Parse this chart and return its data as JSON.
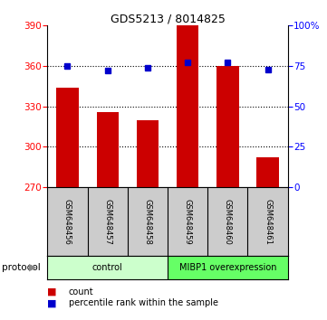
{
  "title": "GDS5213 / 8014825",
  "samples": [
    "GSM648456",
    "GSM648457",
    "GSM648458",
    "GSM648459",
    "GSM648460",
    "GSM648461"
  ],
  "counts": [
    344,
    326,
    320,
    390,
    360,
    292
  ],
  "percentile_ranks": [
    75,
    72,
    74,
    77,
    77,
    73
  ],
  "ylim_left": [
    270,
    390
  ],
  "ylim_right": [
    0,
    100
  ],
  "yticks_left": [
    270,
    300,
    330,
    360,
    390
  ],
  "yticks_right": [
    0,
    25,
    50,
    75,
    100
  ],
  "ytick_right_labels": [
    "0",
    "25",
    "50",
    "75",
    "100%"
  ],
  "bar_color": "#cc0000",
  "dot_color": "#0000cc",
  "bar_width": 0.55,
  "control_color": "#ccffcc",
  "mibp1_color": "#66ff66",
  "protocol_label": "protocol",
  "legend_count_label": "count",
  "legend_percentile_label": "percentile rank within the sample",
  "background_color": "#ffffff",
  "sample_bg_color": "#cccccc"
}
